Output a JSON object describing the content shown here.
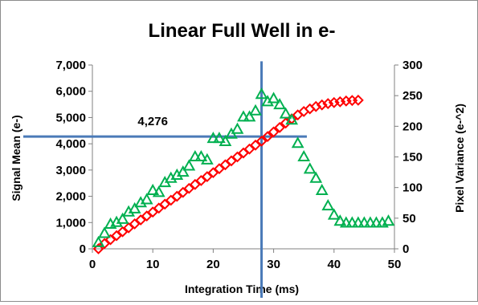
{
  "chart_data": {
    "type": "scatter",
    "title": "Linear Full Well in e-",
    "xlabel": "Integration Time (ms)",
    "ylabel": "Signal Mean (e-)",
    "y2label": "Pixel Variance (e-^2)",
    "xlim": [
      0,
      50
    ],
    "ylim": [
      0,
      7000
    ],
    "y2lim": [
      0,
      300
    ],
    "x_ticks": [
      "0",
      "10",
      "20",
      "30",
      "40",
      "50"
    ],
    "y_ticks": [
      "0",
      "1,000",
      "2,000",
      "3,000",
      "4,000",
      "5,000",
      "6,000",
      "7,000"
    ],
    "y2_ticks": [
      "0",
      "50",
      "100",
      "150",
      "200",
      "250",
      "300"
    ],
    "grid": false,
    "annotation": {
      "text": "4,276",
      "x": 28,
      "y": 4276
    },
    "series": [
      {
        "marker": "diamond",
        "axis": "left",
        "color": "#ff0000",
        "x": [
          1,
          2,
          3,
          4,
          5,
          6,
          7,
          8,
          9,
          10,
          11,
          12,
          13,
          14,
          15,
          16,
          17,
          18,
          19,
          20,
          21,
          22,
          23,
          24,
          25,
          26,
          27,
          28,
          29,
          30,
          31,
          32,
          33,
          34,
          35,
          36,
          37,
          38,
          39,
          40,
          41,
          42,
          43,
          44
        ],
        "values": [
          0,
          200,
          350,
          500,
          650,
          800,
          950,
          1100,
          1250,
          1400,
          1550,
          1700,
          1850,
          2000,
          2150,
          2300,
          2450,
          2600,
          2750,
          2900,
          3050,
          3200,
          3350,
          3500,
          3650,
          3800,
          3950,
          4100,
          4276,
          4450,
          4620,
          4790,
          4950,
          5100,
          5230,
          5330,
          5420,
          5480,
          5530,
          5570,
          5600,
          5630,
          5650,
          5660
        ]
      },
      {
        "marker": "triangle",
        "axis": "right",
        "color": "#00b050",
        "x": [
          1,
          2,
          3,
          4,
          5,
          6,
          7,
          8,
          9,
          10,
          11,
          12,
          13,
          14,
          15,
          16,
          17,
          18,
          19,
          20,
          21,
          22,
          23,
          24,
          25,
          26,
          27,
          28,
          29,
          30,
          31,
          32,
          33,
          34,
          35,
          36,
          37,
          38,
          39,
          40,
          41,
          42,
          43,
          44,
          45,
          46,
          47,
          48,
          49
        ],
        "values": [
          10,
          25,
          40,
          43,
          48,
          60,
          65,
          75,
          80,
          95,
          92,
          108,
          115,
          120,
          125,
          135,
          150,
          150,
          145,
          180,
          180,
          175,
          187,
          195,
          215,
          215,
          225,
          252,
          240,
          245,
          235,
          220,
          210,
          172,
          150,
          130,
          115,
          95,
          70,
          55,
          45,
          42,
          42,
          42,
          42,
          42,
          42,
          42,
          45
        ]
      }
    ]
  }
}
